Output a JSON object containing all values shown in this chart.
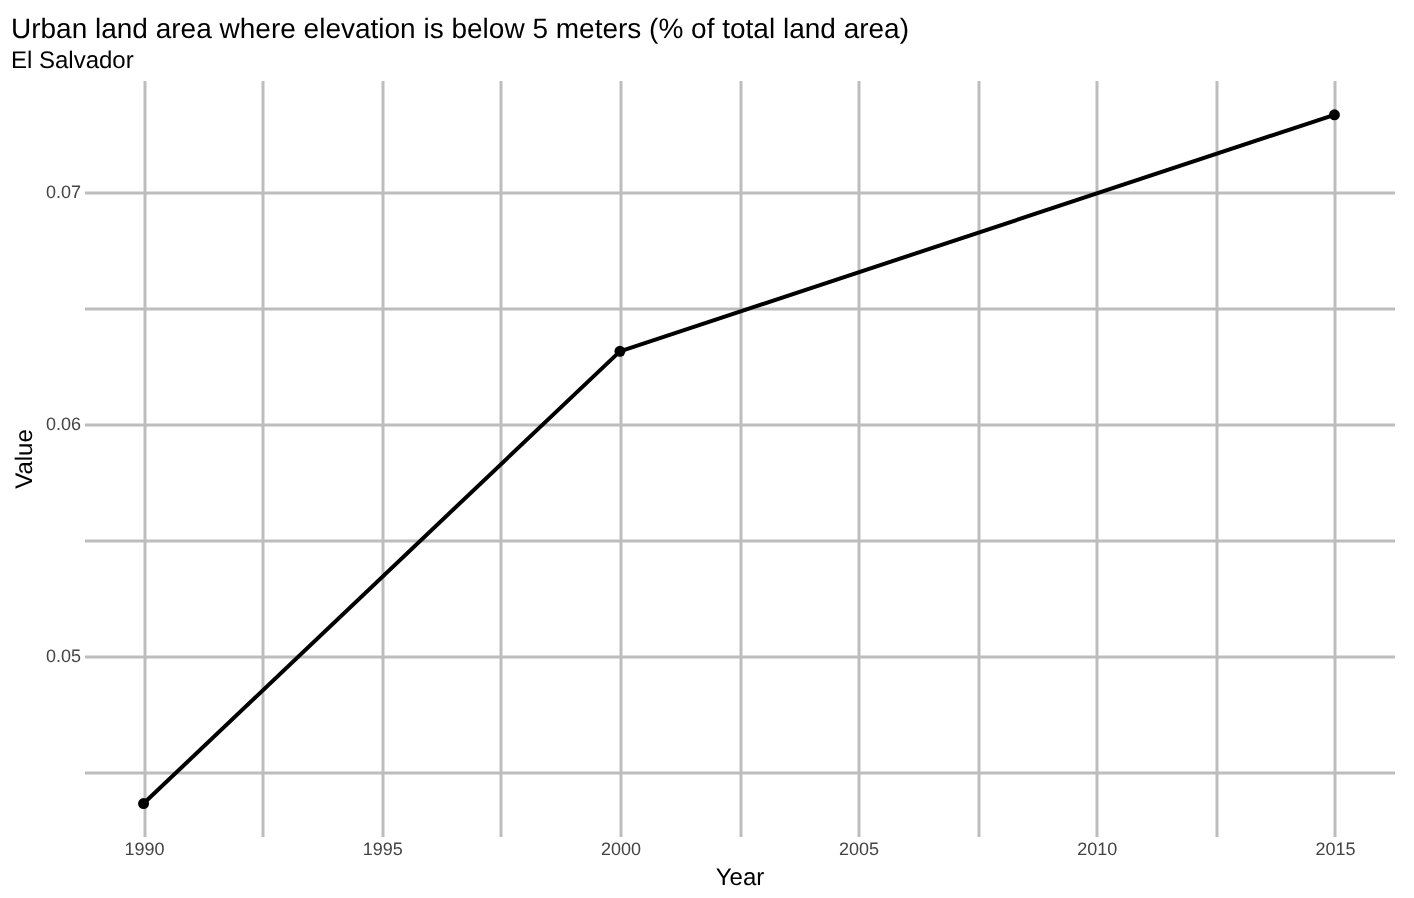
{
  "chart_data": {
    "type": "line",
    "title": "Urban land area where elevation is below 5 meters (% of total land area)",
    "subtitle": "El Salvador",
    "xlabel": "Year",
    "ylabel": "Value",
    "x": [
      1990,
      2000,
      2015
    ],
    "series": [
      {
        "color": "#000000",
        "values": [
          0.0436,
          0.0631,
          0.0733
        ]
      }
    ],
    "xlim": [
      1988.75,
      2016.25
    ],
    "xticks": [
      1990,
      {
        "value": 1992.5,
        "label": null
      },
      1995,
      {
        "value": 1997.5,
        "label": null
      },
      2000,
      {
        "value": 2002.5,
        "label": null
      },
      2005,
      {
        "value": 2007.5,
        "label": null
      },
      2010,
      {
        "value": 2012.5,
        "label": null
      },
      2015
    ],
    "ylim": [
      0.0422,
      0.0748
    ],
    "yticks": [
      {
        "value": 0.045,
        "label": null
      },
      0.05,
      {
        "value": 0.055,
        "label": null
      },
      0.06,
      {
        "value": 0.065,
        "label": null
      },
      0.07
    ],
    "grid": true,
    "marker": "circle",
    "line_style": "solid"
  }
}
